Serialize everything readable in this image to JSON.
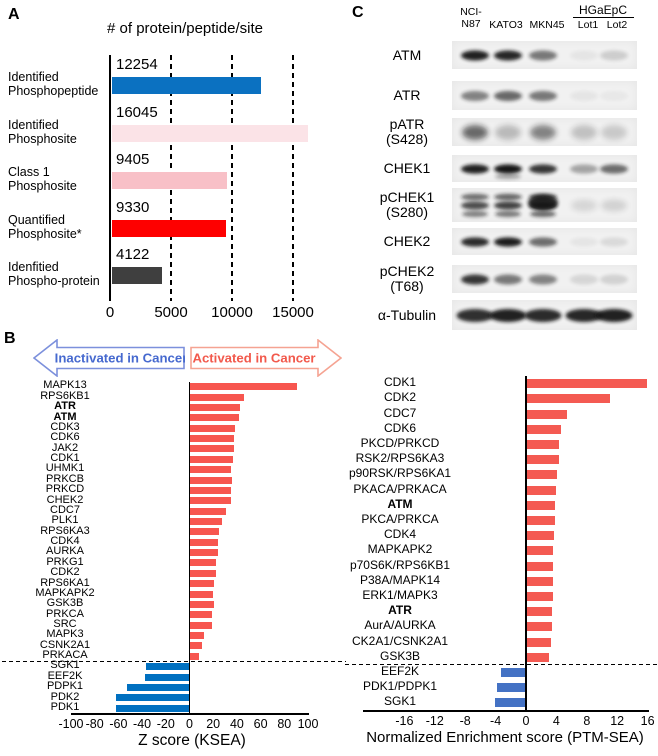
{
  "panels": {
    "a": "A",
    "b": "B",
    "c": "C"
  },
  "chart_data": [
    {
      "id": "phospho-counts",
      "type": "bar",
      "orientation": "horizontal",
      "title": "# of protein/peptide/site",
      "xlabel": "",
      "xlim": [
        0,
        19000
      ],
      "xticks": [
        0,
        5000,
        10000,
        15000
      ],
      "grid": "dashed-vertical",
      "categories": [
        "Identified\nPhosphopeptide",
        "Identified\nPhosphosite",
        "Class 1\nPhosphosite",
        "Quantified\nPhosphosite*",
        "Idenfitied\nPhospho-protein"
      ],
      "values": [
        12254,
        16045,
        9405,
        9330,
        4122
      ],
      "colors": [
        "#0b71c1",
        "#fbe3e7",
        "#f8c0c7",
        "#fe0000",
        "#3f3f3f"
      ]
    },
    {
      "id": "ksea",
      "type": "bar",
      "orientation": "horizontal",
      "xlabel": "Z score (KSEA)",
      "xlim": [
        -100,
        100
      ],
      "xticks": [
        -100,
        -80,
        -60,
        -40,
        -20,
        0,
        20,
        40,
        60,
        80,
        100
      ],
      "annotations": {
        "left_arrow": "Inactivated in Cancer",
        "right_arrow": "Activated in Cancer"
      },
      "positive_color": "#f7564f",
      "negative_color": "#0070c0",
      "separator_after": "PRKACA",
      "series": [
        {
          "label": "MAPK13",
          "value": 90
        },
        {
          "label": "RPS6KB1",
          "value": 45
        },
        {
          "label": "ATR",
          "value": 42,
          "bold": true
        },
        {
          "label": "ATM",
          "value": 41,
          "bold": true
        },
        {
          "label": "CDK3",
          "value": 38
        },
        {
          "label": "CDK6",
          "value": 37
        },
        {
          "label": "JAK2",
          "value": 37
        },
        {
          "label": "CDK1",
          "value": 36
        },
        {
          "label": "UHMK1",
          "value": 34
        },
        {
          "label": "PRKCB",
          "value": 35
        },
        {
          "label": "PRKCD",
          "value": 34
        },
        {
          "label": "CHEK2",
          "value": 34
        },
        {
          "label": "CDC7",
          "value": 30
        },
        {
          "label": "PLK1",
          "value": 27
        },
        {
          "label": "RPS6KA3",
          "value": 24
        },
        {
          "label": "CDK4",
          "value": 23
        },
        {
          "label": "AURKA",
          "value": 23
        },
        {
          "label": "PRKG1",
          "value": 22
        },
        {
          "label": "CDK2",
          "value": 22
        },
        {
          "label": "RPS6KA1",
          "value": 20
        },
        {
          "label": "MAPKAPK2",
          "value": 19
        },
        {
          "label": "GSK3B",
          "value": 20
        },
        {
          "label": "PRKCA",
          "value": 18
        },
        {
          "label": "SRC",
          "value": 18
        },
        {
          "label": "MAPK3",
          "value": 12
        },
        {
          "label": "CSNK2A1",
          "value": 10
        },
        {
          "label": "PRKACA",
          "value": 7
        },
        {
          "label": "SGK1",
          "value": -36
        },
        {
          "label": "EEF2K",
          "value": -37
        },
        {
          "label": "PDPK1",
          "value": -52
        },
        {
          "label": "PDK2",
          "value": -61
        },
        {
          "label": "PDK1",
          "value": -61
        }
      ]
    },
    {
      "id": "ptm-sea",
      "type": "bar",
      "orientation": "horizontal",
      "xlabel": "Normalized Enrichment score (PTM-SEA)",
      "xlim": [
        -16,
        16
      ],
      "xticks": [
        -16,
        -12,
        -8,
        -4,
        0,
        4,
        8,
        12,
        16
      ],
      "positive_color": "#f45a52",
      "negative_color": "#4472c4",
      "separator_after": "GSK3B",
      "series": [
        {
          "label": "CDK1",
          "value": 15.8
        },
        {
          "label": "CDK2",
          "value": 11
        },
        {
          "label": "CDC7",
          "value": 5.3
        },
        {
          "label": "CDK6",
          "value": 4.5
        },
        {
          "label": "PKCD/PRKCD",
          "value": 4.3
        },
        {
          "label": "RSK2/RPS6KA3",
          "value": 4.3
        },
        {
          "label": "p90RSK/RPS6KA1",
          "value": 4.0
        },
        {
          "label": "PKACA/PRKACA",
          "value": 3.8
        },
        {
          "label": "ATM",
          "value": 3.7,
          "bold": true
        },
        {
          "label": "PKCA/PRKCA",
          "value": 3.7
        },
        {
          "label": "CDK4",
          "value": 3.6
        },
        {
          "label": "MAPKAPK2",
          "value": 3.5
        },
        {
          "label": "p70S6K/RPS6KB1",
          "value": 3.5
        },
        {
          "label": "P38A/MAPK14",
          "value": 3.5
        },
        {
          "label": "ERK1/MAPK3",
          "value": 3.4
        },
        {
          "label": "ATR",
          "value": 3.3,
          "bold": true
        },
        {
          "label": "AurA/AURKA",
          "value": 3.3
        },
        {
          "label": "CK2A1/CSNK2A1",
          "value": 3.2
        },
        {
          "label": "GSK3B",
          "value": 2.9
        },
        {
          "label": "EEF2K",
          "value": -3.2
        },
        {
          "label": "PDK1/PDPK1",
          "value": -3.7
        },
        {
          "label": "SGK1",
          "value": -4.0
        }
      ]
    }
  ],
  "western_blot": {
    "group_label": "HGaEpC",
    "columns": [
      "NCI-\nN87",
      "KATO3",
      "MKN45",
      "Lot1",
      "Lot2"
    ],
    "rows": [
      {
        "label": "ATM",
        "style": "single",
        "band_intensities": [
          0.95,
          0.92,
          0.55,
          0.05,
          0.16
        ]
      },
      {
        "label": "ATR",
        "style": "single",
        "band_intensities": [
          0.5,
          0.62,
          0.55,
          0.05,
          0.04
        ]
      },
      {
        "label": "pATR\n(S428)",
        "style": "smudge",
        "band_intensities": [
          0.62,
          0.25,
          0.5,
          0.22,
          0.18
        ]
      },
      {
        "label": "CHEK1",
        "style": "single",
        "sub_lanes": [
          1
        ],
        "band_intensities": [
          0.95,
          1.0,
          0.85,
          0.35,
          0.6
        ]
      },
      {
        "label": "pCHEK1\n(S280)",
        "style": "multi",
        "band_intensities": [
          0.75,
          0.8,
          0.9,
          0.12,
          0.14
        ]
      },
      {
        "label": "CHEK2",
        "style": "single",
        "band_intensities": [
          0.9,
          0.97,
          0.6,
          0.05,
          0.1
        ]
      },
      {
        "label": "pCHEK2\n(T68)",
        "style": "single",
        "band_intensities": [
          0.85,
          0.55,
          0.5,
          0.12,
          0.14
        ]
      },
      {
        "label": "α-Tubulin",
        "style": "thick",
        "band_intensities": [
          0.88,
          0.95,
          0.9,
          0.92,
          0.95
        ]
      }
    ]
  }
}
